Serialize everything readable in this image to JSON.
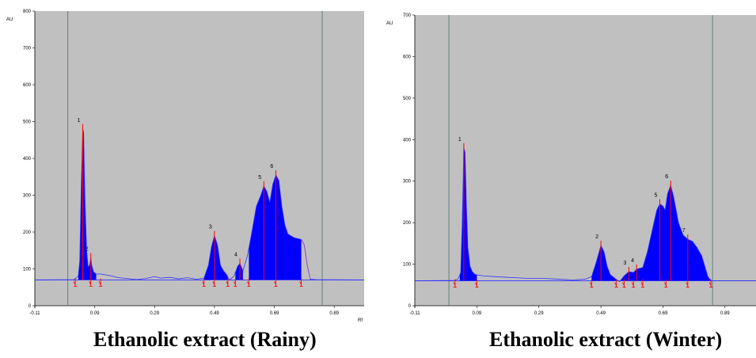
{
  "chart_data": [
    {
      "type": "area",
      "title": "Ethanolic extract (Rainy)",
      "ylabel": "AU",
      "xlabel": "Rf",
      "xlim": [
        -0.11,
        0.99
      ],
      "ylim": [
        0,
        800
      ],
      "x_ticks": [
        "-0.11",
        "0.09",
        "0.29",
        "0.49",
        "0.69",
        "0.89"
      ],
      "y_ticks": [
        "0",
        "100",
        "200",
        "300",
        "400",
        "500",
        "600",
        "700",
        "800"
      ],
      "front_lines": [
        0.0,
        0.85
      ],
      "baseline": 70,
      "colors": {
        "plot_bg": "#c0c0c0",
        "fill": "#0000ff",
        "trace": "#3030ff",
        "marker": "#ff0000",
        "front": "#608080",
        "post_trace": "#9a52c8"
      },
      "trace": [
        [
          -0.11,
          70
        ],
        [
          0.02,
          71
        ],
        [
          0.035,
          80
        ],
        [
          0.04,
          120
        ],
        [
          0.045,
          320
        ],
        [
          0.05,
          480
        ],
        [
          0.053,
          470
        ],
        [
          0.057,
          300
        ],
        [
          0.063,
          150
        ],
        [
          0.068,
          105
        ],
        [
          0.073,
          110
        ],
        [
          0.077,
          130
        ],
        [
          0.08,
          110
        ],
        [
          0.086,
          92
        ],
        [
          0.095,
          86
        ],
        [
          0.11,
          86
        ],
        [
          0.14,
          82
        ],
        [
          0.17,
          76
        ],
        [
          0.2,
          74
        ],
        [
          0.23,
          71
        ],
        [
          0.26,
          74
        ],
        [
          0.29,
          79
        ],
        [
          0.31,
          75
        ],
        [
          0.34,
          77
        ],
        [
          0.37,
          73
        ],
        [
          0.4,
          76
        ],
        [
          0.43,
          72
        ],
        [
          0.455,
          75
        ],
        [
          0.47,
          110
        ],
        [
          0.48,
          160
        ],
        [
          0.49,
          190
        ],
        [
          0.5,
          165
        ],
        [
          0.51,
          110
        ],
        [
          0.52,
          95
        ],
        [
          0.53,
          85
        ],
        [
          0.54,
          70
        ],
        [
          0.555,
          80
        ],
        [
          0.568,
          108
        ],
        [
          0.575,
          115
        ],
        [
          0.585,
          95
        ],
        [
          0.6,
          135
        ],
        [
          0.615,
          200
        ],
        [
          0.63,
          270
        ],
        [
          0.645,
          300
        ],
        [
          0.655,
          325
        ],
        [
          0.665,
          310
        ],
        [
          0.675,
          280
        ],
        [
          0.685,
          330
        ],
        [
          0.695,
          355
        ],
        [
          0.705,
          340
        ],
        [
          0.715,
          270
        ],
        [
          0.725,
          220
        ],
        [
          0.735,
          195
        ],
        [
          0.755,
          185
        ],
        [
          0.78,
          180
        ],
        [
          0.79,
          165
        ],
        [
          0.8,
          110
        ],
        [
          0.81,
          72
        ],
        [
          0.83,
          71
        ],
        [
          0.99,
          70
        ]
      ],
      "filled_ranges": [
        [
          0.035,
          0.095
        ],
        [
          0.455,
          0.535
        ],
        [
          0.56,
          0.585
        ],
        [
          0.605,
          0.78
        ]
      ],
      "post_trace_range": [
        0.78,
        0.81
      ],
      "peaks": [
        {
          "label": "1",
          "rf": 0.05,
          "au": 480
        },
        {
          "label": "2",
          "rf": 0.077,
          "au": 130
        },
        {
          "label": "3",
          "rf": 0.49,
          "au": 190
        },
        {
          "label": "4",
          "rf": 0.575,
          "au": 115
        },
        {
          "label": "5",
          "rf": 0.655,
          "au": 325
        },
        {
          "label": "6",
          "rf": 0.695,
          "au": 355
        }
      ],
      "markers": [
        0.025,
        0.077,
        0.11,
        0.455,
        0.49,
        0.535,
        0.56,
        0.605,
        0.695,
        0.78
      ]
    },
    {
      "type": "area",
      "title": "Ethanolic extract (Winter)",
      "ylabel": "AU",
      "xlabel": "",
      "xlim": [
        -0.11,
        0.99
      ],
      "ylim": [
        0,
        700
      ],
      "x_ticks": [
        "-0.11",
        "0.09",
        "0.29",
        "0.49",
        "0.69",
        "0.89"
      ],
      "y_ticks": [
        "0",
        "100",
        "200",
        "300",
        "400",
        "500",
        "600",
        "700"
      ],
      "front_lines": [
        0.0,
        0.85
      ],
      "baseline": 60,
      "colors": {
        "plot_bg": "#c0c0c0",
        "fill": "#0000ff",
        "trace": "#3030ff",
        "marker": "#ff0000",
        "front": "#608080",
        "post_trace": "#9a52c8"
      },
      "trace": [
        [
          -0.11,
          60
        ],
        [
          0.02,
          61
        ],
        [
          0.03,
          65
        ],
        [
          0.038,
          80
        ],
        [
          0.043,
          200
        ],
        [
          0.048,
          380
        ],
        [
          0.052,
          370
        ],
        [
          0.056,
          250
        ],
        [
          0.061,
          140
        ],
        [
          0.068,
          95
        ],
        [
          0.075,
          82
        ],
        [
          0.085,
          75
        ],
        [
          0.11,
          72
        ],
        [
          0.15,
          70
        ],
        [
          0.2,
          68
        ],
        [
          0.25,
          66
        ],
        [
          0.3,
          66
        ],
        [
          0.35,
          64
        ],
        [
          0.4,
          62
        ],
        [
          0.44,
          64
        ],
        [
          0.46,
          70
        ],
        [
          0.475,
          105
        ],
        [
          0.49,
          145
        ],
        [
          0.5,
          130
        ],
        [
          0.51,
          95
        ],
        [
          0.52,
          75
        ],
        [
          0.535,
          66
        ],
        [
          0.55,
          58
        ],
        [
          0.565,
          72
        ],
        [
          0.58,
          82
        ],
        [
          0.595,
          80
        ],
        [
          0.605,
          88
        ],
        [
          0.615,
          90
        ],
        [
          0.625,
          92
        ],
        [
          0.64,
          130
        ],
        [
          0.655,
          180
        ],
        [
          0.67,
          230
        ],
        [
          0.68,
          245
        ],
        [
          0.69,
          240
        ],
        [
          0.697,
          230
        ],
        [
          0.705,
          270
        ],
        [
          0.715,
          290
        ],
        [
          0.725,
          260
        ],
        [
          0.74,
          200
        ],
        [
          0.755,
          170
        ],
        [
          0.77,
          160
        ],
        [
          0.785,
          155
        ],
        [
          0.8,
          140
        ],
        [
          0.815,
          120
        ],
        [
          0.825,
          95
        ],
        [
          0.835,
          70
        ],
        [
          0.845,
          60
        ],
        [
          0.99,
          60
        ]
      ],
      "filled_ranges": [
        [
          0.035,
          0.09
        ],
        [
          0.46,
          0.54
        ],
        [
          0.555,
          0.845
        ]
      ],
      "peaks": [
        {
          "label": "1",
          "rf": 0.048,
          "au": 380
        },
        {
          "label": "2",
          "rf": 0.49,
          "au": 145
        },
        {
          "label": "3",
          "rf": 0.58,
          "au": 82
        },
        {
          "label": "4",
          "rf": 0.605,
          "au": 88
        },
        {
          "label": "5",
          "rf": 0.68,
          "au": 245
        },
        {
          "label": "6",
          "rf": 0.715,
          "au": 290
        },
        {
          "label": "7",
          "rf": 0.77,
          "au": 160
        }
      ],
      "markers": [
        0.02,
        0.09,
        0.46,
        0.54,
        0.565,
        0.595,
        0.625,
        0.7,
        0.77,
        0.845
      ]
    }
  ]
}
